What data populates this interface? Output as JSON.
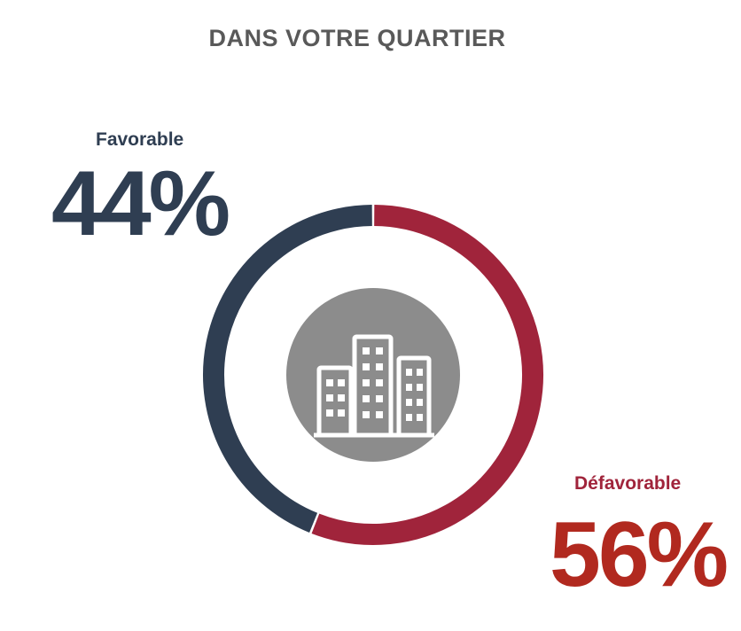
{
  "chart_data": {
    "type": "pie",
    "title": "DANS VOTRE QUARTIER",
    "categories": [
      "Favorable",
      "Défavorable"
    ],
    "values": [
      44,
      56
    ],
    "value_labels": [
      "44%",
      "56%"
    ],
    "colors": [
      "#2f3e52",
      "#a0243b"
    ],
    "value_colors": [
      "#2f3e52",
      "#b1291f"
    ],
    "center_icon": "buildings-icon",
    "center_icon_bg": "#8c8c8c"
  }
}
